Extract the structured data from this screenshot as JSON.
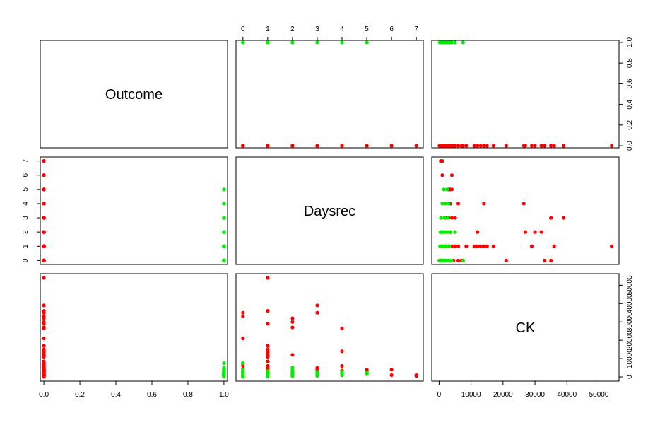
{
  "chart_data": {
    "type": "scatter",
    "layout": "pairs-matrix",
    "variables": [
      "Outcome",
      "Daysrec",
      "CK"
    ],
    "colors": {
      "outcome_0": "#ff0000",
      "outcome_1": "#00ee00"
    },
    "axes": {
      "Outcome": {
        "range": [
          -0.02,
          1.02
        ],
        "ticks": [
          "0.0",
          "0.2",
          "0.4",
          "0.6",
          "0.8",
          "1.0"
        ]
      },
      "Daysrec": {
        "range": [
          -0.28,
          7.28
        ],
        "ticks": [
          "0",
          "1",
          "2",
          "3",
          "4",
          "5",
          "6",
          "7"
        ]
      },
      "CK": {
        "range": [
          -2300,
          56300
        ],
        "ticks": [
          "0",
          "10000",
          "20000",
          "30000",
          "40000",
          "50000"
        ]
      }
    },
    "observations": {
      "outcome1": [
        {
          "d": 0,
          "ck": 200
        },
        {
          "d": 0,
          "ck": 500
        },
        {
          "d": 0,
          "ck": 800
        },
        {
          "d": 0,
          "ck": 1200
        },
        {
          "d": 0,
          "ck": 1600
        },
        {
          "d": 0,
          "ck": 2200
        },
        {
          "d": 0,
          "ck": 3000
        },
        {
          "d": 0,
          "ck": 4000
        },
        {
          "d": 0,
          "ck": 7500
        },
        {
          "d": 1,
          "ck": 300
        },
        {
          "d": 1,
          "ck": 700
        },
        {
          "d": 1,
          "ck": 1500
        },
        {
          "d": 1,
          "ck": 2200
        },
        {
          "d": 1,
          "ck": 3200
        },
        {
          "d": 2,
          "ck": 400
        },
        {
          "d": 2,
          "ck": 900
        },
        {
          "d": 2,
          "ck": 1800
        },
        {
          "d": 2,
          "ck": 2600
        },
        {
          "d": 2,
          "ck": 3500
        },
        {
          "d": 2,
          "ck": 5000
        },
        {
          "d": 3,
          "ck": 600
        },
        {
          "d": 3,
          "ck": 1700
        },
        {
          "d": 3,
          "ck": 2800
        },
        {
          "d": 4,
          "ck": 1000
        },
        {
          "d": 4,
          "ck": 2000
        },
        {
          "d": 4,
          "ck": 3000
        },
        {
          "d": 5,
          "ck": 1500
        },
        {
          "d": 5,
          "ck": 2500
        }
      ],
      "outcome0": [
        {
          "d": 0,
          "ck": 100
        },
        {
          "d": 0,
          "ck": 400
        },
        {
          "d": 0,
          "ck": 1000
        },
        {
          "d": 0,
          "ck": 2000
        },
        {
          "d": 0,
          "ck": 3000
        },
        {
          "d": 0,
          "ck": 4500
        },
        {
          "d": 0,
          "ck": 6000
        },
        {
          "d": 0,
          "ck": 7000
        },
        {
          "d": 0,
          "ck": 7500
        },
        {
          "d": 0,
          "ck": 21000
        },
        {
          "d": 0,
          "ck": 33000
        },
        {
          "d": 0,
          "ck": 35000
        },
        {
          "d": 1,
          "ck": 800
        },
        {
          "d": 1,
          "ck": 2000
        },
        {
          "d": 1,
          "ck": 3000
        },
        {
          "d": 1,
          "ck": 4000
        },
        {
          "d": 1,
          "ck": 5000
        },
        {
          "d": 1,
          "ck": 6000
        },
        {
          "d": 1,
          "ck": 8500
        },
        {
          "d": 1,
          "ck": 11000
        },
        {
          "d": 1,
          "ck": 12000
        },
        {
          "d": 1,
          "ck": 13000
        },
        {
          "d": 1,
          "ck": 14000
        },
        {
          "d": 1,
          "ck": 15000
        },
        {
          "d": 1,
          "ck": 17000
        },
        {
          "d": 1,
          "ck": 29000
        },
        {
          "d": 1,
          "ck": 36000
        },
        {
          "d": 1,
          "ck": 54000
        },
        {
          "d": 2,
          "ck": 500
        },
        {
          "d": 2,
          "ck": 1500
        },
        {
          "d": 2,
          "ck": 2500
        },
        {
          "d": 2,
          "ck": 3500
        },
        {
          "d": 2,
          "ck": 5000
        },
        {
          "d": 2,
          "ck": 12000
        },
        {
          "d": 2,
          "ck": 27000
        },
        {
          "d": 2,
          "ck": 30000
        },
        {
          "d": 2,
          "ck": 32000
        },
        {
          "d": 3,
          "ck": 600
        },
        {
          "d": 3,
          "ck": 2000
        },
        {
          "d": 3,
          "ck": 3000
        },
        {
          "d": 3,
          "ck": 4000
        },
        {
          "d": 3,
          "ck": 5000
        },
        {
          "d": 3,
          "ck": 35000
        },
        {
          "d": 3,
          "ck": 39000
        },
        {
          "d": 4,
          "ck": 1000
        },
        {
          "d": 4,
          "ck": 2000
        },
        {
          "d": 4,
          "ck": 3500
        },
        {
          "d": 4,
          "ck": 6000
        },
        {
          "d": 4,
          "ck": 14000
        },
        {
          "d": 4,
          "ck": 26500
        },
        {
          "d": 5,
          "ck": 3000
        },
        {
          "d": 5,
          "ck": 3500
        },
        {
          "d": 5,
          "ck": 4000
        },
        {
          "d": 6,
          "ck": 1000
        },
        {
          "d": 6,
          "ck": 4000
        },
        {
          "d": 7,
          "ck": 500
        },
        {
          "d": 7,
          "ck": 1000
        }
      ]
    }
  }
}
